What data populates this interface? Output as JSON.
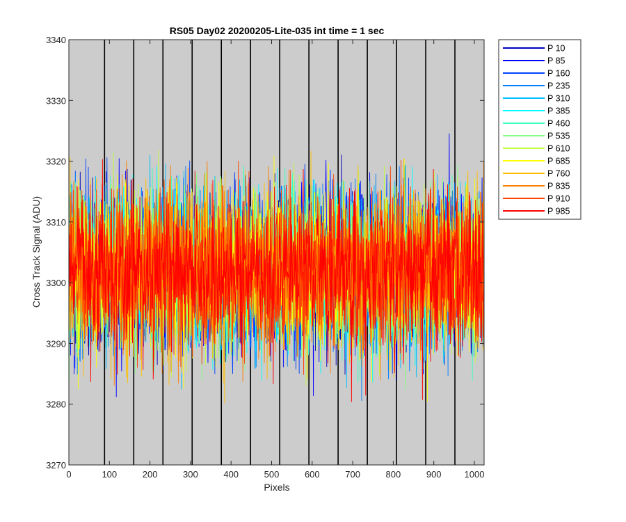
{
  "chart_data": {
    "type": "line",
    "title": "RS05 Day02 20200205-Lite-035 int time = 1 sec",
    "xlabel": "Pixels",
    "ylabel": "Cross Track Signal (ADU)",
    "xlim": [
      0,
      1024
    ],
    "ylim": [
      3270,
      3340
    ],
    "xticks": [
      0,
      100,
      200,
      300,
      400,
      500,
      600,
      700,
      800,
      900,
      1000
    ],
    "yticks": [
      3270,
      3280,
      3290,
      3300,
      3310,
      3320,
      3330,
      3340
    ],
    "tap_boundaries": [
      88,
      160,
      232,
      304,
      376,
      448,
      520,
      592,
      664,
      736,
      808,
      880,
      952
    ],
    "background": "#cccccc",
    "legend_position": "outside-right-top",
    "noise_model": {
      "mean": 3302,
      "std": 6.5,
      "min_observed": 3275,
      "max_observed": 3333
    },
    "series": [
      {
        "name": "P 10",
        "color": "#0000bf"
      },
      {
        "name": "P 85",
        "color": "#0000ff"
      },
      {
        "name": "P 160",
        "color": "#0040ff"
      },
      {
        "name": "P 235",
        "color": "#0080ff"
      },
      {
        "name": "P 310",
        "color": "#00bfff"
      },
      {
        "name": "P 385",
        "color": "#00ffff"
      },
      {
        "name": "P 460",
        "color": "#40ffbf"
      },
      {
        "name": "P 535",
        "color": "#80ff80"
      },
      {
        "name": "P 610",
        "color": "#bfff40"
      },
      {
        "name": "P 685",
        "color": "#ffff00"
      },
      {
        "name": "P 760",
        "color": "#ffbf00"
      },
      {
        "name": "P 835",
        "color": "#ff8000"
      },
      {
        "name": "P 910",
        "color": "#ff4000"
      },
      {
        "name": "P 985",
        "color": "#ff0000"
      }
    ]
  }
}
